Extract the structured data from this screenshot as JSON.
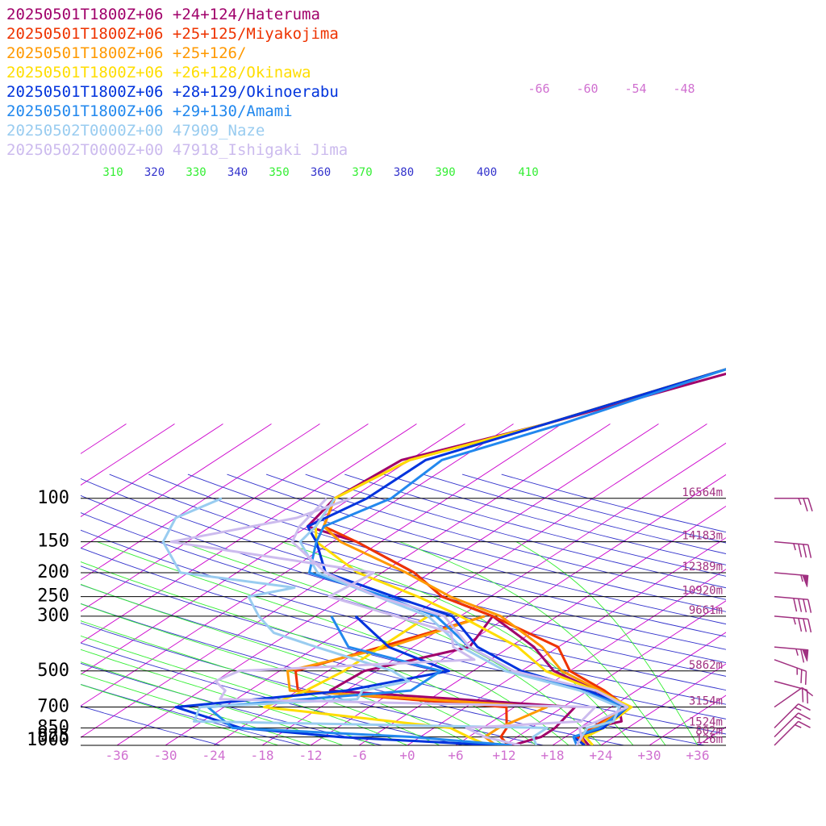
{
  "chart_data": {
    "type": "line",
    "title": "",
    "xlabel": "",
    "ylabel": "",
    "xlim": [
      -40,
      40
    ],
    "ylim": [
      1000,
      100
    ],
    "y_log_scale": true,
    "grid": true,
    "legend_placement": "top-left",
    "colors": {
      "isobar": "#000000",
      "isotherm": "#cc00cc",
      "dry_adiabat": "#3333cc",
      "moist_adiabat": "#33ee33",
      "axis_label": "#d070d0",
      "height_label": "#a03080",
      "pressure_label": "#000000"
    },
    "pressure_ticks": [
      "100",
      "150",
      "200",
      "250",
      "300",
      "500",
      "700",
      "850",
      "925",
      "1000"
    ],
    "pressure_values": [
      100,
      150,
      200,
      250,
      300,
      500,
      700,
      850,
      925,
      1000
    ],
    "temperature_ticks": [
      "-36",
      "-30",
      "-24",
      "-18",
      "-12",
      "-6",
      "+0",
      "+6",
      "+12",
      "+18",
      "+24",
      "+30",
      "+36"
    ],
    "temperature_values": [
      -36,
      -30,
      -24,
      -18,
      -12,
      -6,
      0,
      6,
      12,
      18,
      24,
      30,
      36
    ],
    "upper_temperature_ticks": [
      "-66",
      "-60",
      "-54",
      "-48"
    ],
    "theta_labels": [
      "310",
      "320",
      "330",
      "340",
      "350",
      "360",
      "370",
      "380",
      "390",
      "400",
      "410"
    ],
    "height_labels": [
      {
        "p": 100,
        "text": "16564m"
      },
      {
        "p": 150,
        "text": "14183m"
      },
      {
        "p": 200,
        "text": "12389m"
      },
      {
        "p": 250,
        "text": "10920m"
      },
      {
        "p": 300,
        "text": "9661m"
      },
      {
        "p": 500,
        "text": "5862m"
      },
      {
        "p": 700,
        "text": "3154m"
      },
      {
        "p": 850,
        "text": "1524m"
      },
      {
        "p": 925,
        "text": "802m"
      },
      {
        "p": 1000,
        "text": "126m"
      }
    ],
    "wind_barbs": [
      {
        "p": 100,
        "direction_deg": 270,
        "speed_kt": 25
      },
      {
        "p": 150,
        "direction_deg": 275,
        "speed_kt": 35
      },
      {
        "p": 200,
        "direction_deg": 275,
        "speed_kt": 55
      },
      {
        "p": 250,
        "direction_deg": 275,
        "speed_kt": 40
      },
      {
        "p": 300,
        "direction_deg": 275,
        "speed_kt": 35
      },
      {
        "p": 400,
        "direction_deg": 275,
        "speed_kt": 65
      },
      {
        "p": 450,
        "direction_deg": 290,
        "speed_kt": 25
      },
      {
        "p": 550,
        "direction_deg": 285,
        "speed_kt": 20
      },
      {
        "p": 700,
        "direction_deg": 235,
        "speed_kt": 10
      },
      {
        "p": 850,
        "direction_deg": 225,
        "speed_kt": 15
      },
      {
        "p": 925,
        "direction_deg": 225,
        "speed_kt": 15
      },
      {
        "p": 1000,
        "direction_deg": 225,
        "speed_kt": 15
      }
    ],
    "series": [
      {
        "name": "20250501T1800Z+06 +24+124/Hateruma",
        "color": "#a0006a",
        "temperature": [
          [
            1000,
            22.5
          ],
          [
            925,
            20
          ],
          [
            850,
            19.5
          ],
          [
            800,
            22
          ],
          [
            700,
            19
          ],
          [
            600,
            13
          ],
          [
            500,
            4
          ],
          [
            400,
            -3
          ],
          [
            300,
            -14
          ],
          [
            250,
            -24
          ],
          [
            200,
            -32
          ],
          [
            150,
            -45
          ],
          [
            130,
            -54
          ],
          [
            100,
            -56
          ],
          [
            70,
            -55
          ],
          [
            50,
            -44
          ],
          [
            30,
            -30
          ]
        ],
        "dewpoint": [
          [
            1000,
            13
          ],
          [
            925,
            15
          ],
          [
            850,
            15
          ],
          [
            700,
            13.5
          ],
          [
            600,
            -20
          ],
          [
            500,
            -19.5
          ],
          [
            400,
            -11
          ],
          [
            300,
            -14
          ]
        ]
      },
      {
        "name": "20250501T1800Z+06 +25+125/Miyakojima",
        "color": "#ee3300",
        "temperature": [
          [
            1000,
            22
          ],
          [
            925,
            19.5
          ],
          [
            850,
            19.5
          ],
          [
            700,
            20
          ],
          [
            600,
            14
          ],
          [
            500,
            6
          ],
          [
            400,
            0
          ],
          [
            300,
            -14
          ],
          [
            250,
            -24
          ],
          [
            200,
            -32
          ],
          [
            150,
            -45
          ],
          [
            130,
            -52
          ],
          [
            100,
            -56
          ],
          [
            70,
            -54
          ],
          [
            50,
            -44
          ],
          [
            30,
            -32
          ]
        ],
        "dewpoint": [
          [
            1000,
            12.5
          ],
          [
            925,
            10
          ],
          [
            850,
            9
          ],
          [
            700,
            5
          ],
          [
            600,
            -24
          ],
          [
            500,
            -28
          ],
          [
            400,
            -22
          ],
          [
            300,
            -15
          ]
        ]
      },
      {
        "name": "20250501T1800Z+06 +25+126/",
        "color": "#ff9900",
        "temperature": [
          [
            1000,
            22
          ],
          [
            925,
            20
          ],
          [
            850,
            20
          ],
          [
            700,
            20
          ],
          [
            600,
            13.5
          ],
          [
            500,
            5
          ],
          [
            400,
            -2
          ],
          [
            300,
            -13
          ],
          [
            250,
            -23
          ],
          [
            200,
            -33
          ],
          [
            150,
            -47
          ],
          [
            130,
            -52
          ],
          [
            100,
            -56
          ],
          [
            70,
            -54
          ],
          [
            50,
            -44
          ],
          [
            30,
            -32
          ]
        ],
        "dewpoint": [
          [
            1000,
            11
          ],
          [
            925,
            8
          ],
          [
            850,
            8
          ],
          [
            700,
            10
          ],
          [
            600,
            -25
          ],
          [
            500,
            -29
          ],
          [
            400,
            -21
          ],
          [
            300,
            -15
          ]
        ]
      },
      {
        "name": "20250501T1800Z+06 +26+128/Okinawa",
        "color": "#ffdd00",
        "temperature": [
          [
            1000,
            23
          ],
          [
            925,
            20.5
          ],
          [
            850,
            21
          ],
          [
            700,
            20.5
          ],
          [
            600,
            13
          ],
          [
            500,
            3
          ],
          [
            400,
            -5
          ],
          [
            300,
            -18
          ],
          [
            250,
            -27
          ],
          [
            200,
            -39
          ],
          [
            150,
            -50
          ],
          [
            130,
            -53
          ],
          [
            100,
            -56
          ],
          [
            70,
            -54
          ],
          [
            50,
            -44
          ],
          [
            30,
            -32
          ]
        ],
        "dewpoint": [
          [
            1000,
            10
          ],
          [
            925,
            6
          ],
          [
            850,
            2
          ],
          [
            700,
            -25
          ],
          [
            600,
            -23
          ],
          [
            500,
            -22
          ],
          [
            400,
            -22
          ],
          [
            300,
            -22
          ]
        ]
      },
      {
        "name": "20250501T1800Z+06 +28+129/Okinoerabu",
        "color": "#0033dd",
        "temperature": [
          [
            1000,
            22
          ],
          [
            925,
            19
          ],
          [
            850,
            21
          ],
          [
            700,
            20
          ],
          [
            600,
            12
          ],
          [
            500,
            0
          ],
          [
            400,
            -10
          ],
          [
            300,
            -19
          ],
          [
            250,
            -30
          ],
          [
            200,
            -43
          ],
          [
            150,
            -50
          ],
          [
            130,
            -54
          ],
          [
            100,
            -52
          ],
          [
            70,
            -52
          ],
          [
            50,
            -44
          ],
          [
            30,
            -32
          ]
        ],
        "dewpoint": [
          [
            1000,
            11
          ],
          [
            925,
            -10
          ],
          [
            850,
            -24
          ],
          [
            700,
            -36
          ],
          [
            600,
            -18
          ],
          [
            500,
            -9
          ],
          [
            400,
            -21
          ],
          [
            300,
            -31
          ]
        ]
      },
      {
        "name": "20250501T1800Z+06 +29+130/Amami",
        "color": "#2288ee",
        "temperature": [
          [
            1000,
            21
          ],
          [
            925,
            19
          ],
          [
            850,
            20.5
          ],
          [
            700,
            20
          ],
          [
            600,
            11
          ],
          [
            500,
            -1
          ],
          [
            400,
            -11
          ],
          [
            300,
            -21
          ],
          [
            250,
            -31
          ],
          [
            200,
            -45
          ],
          [
            150,
            -50
          ],
          [
            130,
            -52
          ],
          [
            100,
            -49
          ],
          [
            70,
            -50
          ],
          [
            50,
            -42
          ],
          [
            30,
            -32
          ]
        ],
        "dewpoint": [
          [
            1000,
            13
          ],
          [
            925,
            -1
          ],
          [
            850,
            -25
          ],
          [
            700,
            -32
          ],
          [
            600,
            -10
          ],
          [
            500,
            -10
          ],
          [
            400,
            -26
          ],
          [
            300,
            -34
          ]
        ]
      },
      {
        "name": "20250502T0000Z+00 47909_Naze",
        "color": "#99ccf0",
        "temperature": [
          [
            1000,
            21
          ],
          [
            925,
            20
          ],
          [
            850,
            19
          ],
          [
            800,
            21
          ],
          [
            700,
            19
          ],
          [
            600,
            11
          ],
          [
            500,
            -2
          ],
          [
            400,
            -12
          ],
          [
            300,
            -22
          ],
          [
            250,
            -32
          ],
          [
            200,
            -44
          ],
          [
            150,
            -52
          ],
          [
            130,
            -53
          ],
          [
            100,
            -56
          ]
        ],
        "dewpoint": [
          [
            1000,
            16
          ],
          [
            925,
            14
          ],
          [
            850,
            14
          ],
          [
            800,
            -31
          ],
          [
            700,
            -33
          ],
          [
            650,
            -15
          ],
          [
            600,
            -16
          ],
          [
            550,
            -12
          ],
          [
            500,
            -16
          ],
          [
            400,
            -30
          ],
          [
            350,
            -38
          ],
          [
            300,
            -43
          ],
          [
            250,
            -48
          ],
          [
            230,
            -44
          ],
          [
            200,
            -61
          ],
          [
            150,
            -69
          ],
          [
            120,
            -72
          ],
          [
            100,
            -70
          ]
        ]
      },
      {
        "name": "20250502T0000Z+00 47918_Ishigaki Jima",
        "color": "#ccbbee",
        "temperature": [
          [
            1000,
            21
          ],
          [
            925,
            20
          ],
          [
            850,
            18
          ],
          [
            800,
            19
          ],
          [
            700,
            20
          ],
          [
            600,
            13
          ],
          [
            500,
            -1
          ],
          [
            400,
            -11
          ],
          [
            300,
            -20
          ],
          [
            250,
            -32
          ],
          [
            200,
            -43
          ],
          [
            150,
            -53
          ],
          [
            130,
            -55
          ],
          [
            100,
            -57
          ]
        ],
        "dewpoint": [
          [
            1000,
            14
          ],
          [
            925,
            8
          ],
          [
            850,
            4
          ],
          [
            800,
            17
          ],
          [
            700,
            16
          ],
          [
            650,
            -32
          ],
          [
            600,
            -33
          ],
          [
            550,
            -36
          ],
          [
            500,
            -35
          ],
          [
            450,
            -8
          ],
          [
            400,
            -13
          ],
          [
            350,
            -16
          ],
          [
            300,
            -26
          ],
          [
            250,
            -38
          ],
          [
            200,
            -37
          ],
          [
            150,
            -68
          ],
          [
            120,
            -57
          ],
          [
            100,
            -54
          ]
        ]
      }
    ]
  }
}
